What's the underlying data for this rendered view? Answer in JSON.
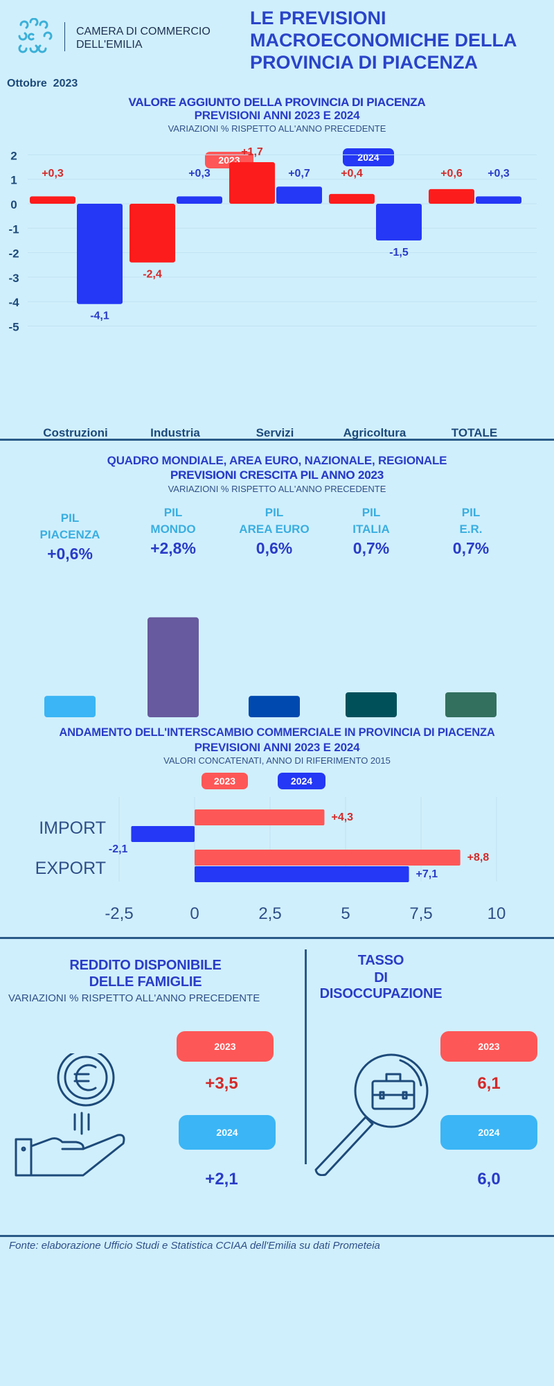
{
  "header": {
    "org_line1": "CAMERA DI COMMERCIO",
    "org_line2": "DELL'EMILIA",
    "title_lines": [
      "LE PREVISIONI",
      "MACROECONOMICHE DELLA",
      "PROVINCIA DI PIACENZA"
    ],
    "date": "Ottobre  2023"
  },
  "colors": {
    "bg": "#d0effc",
    "red": "#fd1c1c",
    "blue": "#2438f5",
    "label_red": "#d42a2a",
    "label_blue": "#2a3cc7",
    "pill_red": "#fe5757",
    "pill_light": "#3bb5f5"
  },
  "section1": {
    "title1": "VALORE AGGIUNTO DELLA PROVINCIA DI PIACENZA",
    "title2": "PREVISIONI ANNI 2023 E 2024",
    "subtitle": "VARIAZIONI % RISPETTO ALL'ANNO PRECEDENTE",
    "legend": [
      "2023",
      "2024"
    ]
  },
  "section2": {
    "title1": "QUADRO MONDIALE, AREA EURO, NAZIONALE, REGIONALE",
    "title2": "PREVISIONI CRESCITA PIL ANNO 2023",
    "subtitle": "VARIAZIONI % RISPETTO ALL'ANNO PRECEDENTE",
    "items": [
      {
        "l1": "PIL",
        "l2": "PIACENZA",
        "value": "+0,6%"
      },
      {
        "l1": "PIL",
        "l2": "MONDO",
        "value": "+2,8%"
      },
      {
        "l1": "PIL",
        "l2": "AREA EURO",
        "value": "0,6%"
      },
      {
        "l1": "PIL",
        "l2": "ITALIA",
        "value": "0,7%"
      },
      {
        "l1": "PIL",
        "l2": "E.R.",
        "value": "0,7%"
      }
    ]
  },
  "section3": {
    "title1": "ANDAMENTO DELL'INTERSCAMBIO COMMERCIALE IN PROVINCIA DI PIACENZA",
    "title2": "PREVISIONI ANNI  2023 E 2024",
    "subtitle": "VALORI CONCATENATI, ANNO DI RIFERIMENTO 2015",
    "legend": [
      "2023",
      "2024"
    ]
  },
  "section4": {
    "left_title1": "REDDITO DISPONIBILE",
    "left_title2": "DELLE FAMIGLIE",
    "left_subtitle": "VARIAZIONI % RISPETTO ALL'ANNO PRECEDENTE",
    "left_pill_2023": "2023",
    "left_pill_2024": "2024",
    "left_val_2023": "+3,5",
    "left_val_2024": "+2,1",
    "right_title1": "TASSO",
    "right_title2": "DI DISOCCUPAZIONE",
    "right_pill_2023": "2023",
    "right_pill_2024": "2024",
    "right_val_2023": "6,1",
    "right_val_2024": "6,0"
  },
  "footer": {
    "source": "Fonte: elaborazione Ufficio Studi e Statistica CCIAA dell'Emilia su dati Prometeia"
  },
  "chart_data": [
    {
      "type": "bar",
      "title": "VALORE AGGIUNTO DELLA PROVINCIA DI PIACENZA",
      "categories": [
        "Costruzioni",
        "Industria",
        "Servizi",
        "Agricoltura",
        "TOTALE"
      ],
      "series": [
        {
          "name": "2023",
          "values": [
            0.3,
            -2.4,
            1.7,
            0.4,
            0.6
          ],
          "labels": [
            "+0,3",
            "-2,4",
            "+1,7",
            "+0,4",
            "+0,6"
          ]
        },
        {
          "name": "2024",
          "values": [
            -4.1,
            0.3,
            0.7,
            -1.5,
            0.3
          ],
          "labels": [
            "-4,1",
            "+0,3",
            "+0,7",
            "-1,5",
            "+0,3"
          ]
        }
      ],
      "ylim": [
        -5,
        2
      ],
      "yticks": [
        "2",
        "1",
        "0",
        "-1",
        "-2",
        "-3",
        "-4",
        "-5"
      ],
      "ytick_values": [
        2,
        1,
        0,
        -1,
        -2,
        -3,
        -4,
        -5
      ],
      "grid": true
    },
    {
      "type": "bar",
      "title": "PREVISIONI CRESCITA PIL ANNO 2023",
      "categories": [
        "PIL PIACENZA",
        "PIL MONDO",
        "PIL AREA EURO",
        "PIL ITALIA",
        "PIL E.R."
      ],
      "values": [
        0.6,
        2.8,
        0.6,
        0.7,
        0.7
      ],
      "colors": [
        "#3bb5f5",
        "#675a9e",
        "#0049ae",
        "#00505a",
        "#33705e"
      ]
    },
    {
      "type": "bar",
      "orientation": "horizontal",
      "title": "ANDAMENTO DELL'INTERSCAMBIO COMMERCIALE",
      "categories": [
        "IMPORT",
        "EXPORT"
      ],
      "series": [
        {
          "name": "2023",
          "values": [
            4.3,
            8.8
          ],
          "labels": [
            "+4,3",
            "+8,8"
          ]
        },
        {
          "name": "2024",
          "values": [
            -2.1,
            7.1
          ],
          "labels": [
            "-2,1",
            "+7,1"
          ]
        }
      ],
      "xlim": [
        -2.5,
        10
      ],
      "xticks": [
        "-2,5",
        "0",
        "2,5",
        "5",
        "7,5",
        "10"
      ],
      "xtick_values": [
        -2.5,
        0,
        2.5,
        5,
        7.5,
        10
      ],
      "grid": true
    }
  ]
}
